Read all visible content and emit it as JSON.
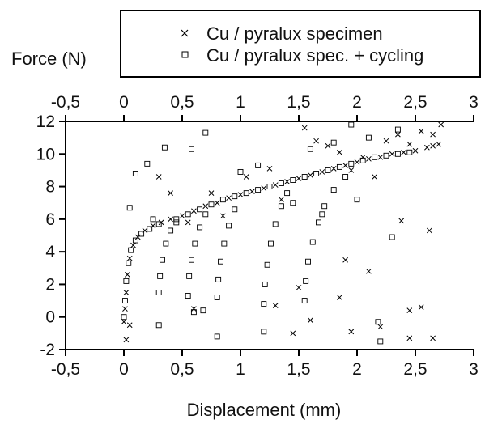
{
  "chart_data": {
    "type": "scatter",
    "title": "",
    "xlabel": "Displacement (mm)",
    "ylabel": "Force (N)",
    "xlim": [
      -0.5,
      3
    ],
    "ylim": [
      -2,
      12
    ],
    "x_ticks": [
      "-0,5",
      "0",
      "0,5",
      "1",
      "1,5",
      "2",
      "2,5",
      "3"
    ],
    "x_tick_values": [
      -0.5,
      0,
      0.5,
      1,
      1.5,
      2,
      2.5,
      3
    ],
    "y_ticks": [
      "-2",
      "0",
      "2",
      "4",
      "6",
      "8",
      "10",
      "12"
    ],
    "y_tick_values": [
      -2,
      0,
      2,
      4,
      6,
      8,
      10,
      12
    ],
    "top_axis": true,
    "grid": false,
    "legend_position": "top-right",
    "series": [
      {
        "name": "Cu / pyralux specimen",
        "marker": "x",
        "points": [
          [
            0.0,
            -0.3
          ],
          [
            0.01,
            0.5
          ],
          [
            0.02,
            1.5
          ],
          [
            0.03,
            2.6
          ],
          [
            0.05,
            3.6
          ],
          [
            0.08,
            4.4
          ],
          [
            0.12,
            4.9
          ],
          [
            0.18,
            5.3
          ],
          [
            0.25,
            5.6
          ],
          [
            0.32,
            5.8
          ],
          [
            0.4,
            6.0
          ],
          [
            0.5,
            6.2
          ],
          [
            0.6,
            6.5
          ],
          [
            0.7,
            6.8
          ],
          [
            0.8,
            7.0
          ],
          [
            0.9,
            7.3
          ],
          [
            1.0,
            7.5
          ],
          [
            1.1,
            7.7
          ],
          [
            1.2,
            7.9
          ],
          [
            1.3,
            8.1
          ],
          [
            1.4,
            8.3
          ],
          [
            1.5,
            8.5
          ],
          [
            1.6,
            8.7
          ],
          [
            1.7,
            8.9
          ],
          [
            1.8,
            9.1
          ],
          [
            1.9,
            9.3
          ],
          [
            2.0,
            9.5
          ],
          [
            2.1,
            9.7
          ],
          [
            2.2,
            9.8
          ],
          [
            2.3,
            10.0
          ],
          [
            2.4,
            10.1
          ],
          [
            2.5,
            10.2
          ],
          [
            2.6,
            10.4
          ],
          [
            2.65,
            10.5
          ],
          [
            2.7,
            10.6
          ],
          [
            0.55,
            5.8
          ],
          [
            0.75,
            7.6
          ],
          [
            0.85,
            6.2
          ],
          [
            1.05,
            8.6
          ],
          [
            1.25,
            9.1
          ],
          [
            1.35,
            7.2
          ],
          [
            1.55,
            11.6
          ],
          [
            1.65,
            10.8
          ],
          [
            1.75,
            10.5
          ],
          [
            1.85,
            10.1
          ],
          [
            1.95,
            9.0
          ],
          [
            2.05,
            9.8
          ],
          [
            2.15,
            8.6
          ],
          [
            2.25,
            10.8
          ],
          [
            2.35,
            11.2
          ],
          [
            2.45,
            10.6
          ],
          [
            2.55,
            11.4
          ],
          [
            2.65,
            11.2
          ],
          [
            2.72,
            11.8
          ],
          [
            1.85,
            1.2
          ],
          [
            1.9,
            3.5
          ],
          [
            2.1,
            2.8
          ],
          [
            2.2,
            -0.6
          ],
          [
            2.38,
            5.9
          ],
          [
            2.45,
            0.4
          ],
          [
            2.45,
            -1.3
          ],
          [
            2.55,
            0.6
          ],
          [
            2.62,
            5.3
          ],
          [
            2.65,
            -1.3
          ],
          [
            1.45,
            -1.0
          ],
          [
            1.6,
            -0.2
          ],
          [
            1.95,
            -0.9
          ],
          [
            1.3,
            0.7
          ],
          [
            1.5,
            1.8
          ],
          [
            0.02,
            -1.4
          ],
          [
            0.05,
            -0.5
          ],
          [
            0.6,
            0.5
          ],
          [
            0.4,
            7.6
          ],
          [
            0.3,
            8.6
          ]
        ]
      },
      {
        "name": "Cu / pyralux spec. + cycling",
        "marker": "square",
        "points": [
          [
            0.0,
            0.0
          ],
          [
            0.01,
            1.0
          ],
          [
            0.02,
            2.2
          ],
          [
            0.04,
            3.3
          ],
          [
            0.06,
            4.1
          ],
          [
            0.1,
            4.7
          ],
          [
            0.15,
            5.1
          ],
          [
            0.22,
            5.4
          ],
          [
            0.3,
            5.7
          ],
          [
            0.45,
            6.0
          ],
          [
            0.55,
            6.3
          ],
          [
            0.65,
            6.6
          ],
          [
            0.75,
            6.9
          ],
          [
            0.85,
            7.2
          ],
          [
            0.95,
            7.4
          ],
          [
            1.05,
            7.6
          ],
          [
            1.15,
            7.8
          ],
          [
            1.25,
            8.0
          ],
          [
            1.35,
            8.2
          ],
          [
            1.45,
            8.4
          ],
          [
            1.55,
            8.6
          ],
          [
            1.65,
            8.8
          ],
          [
            1.75,
            9.0
          ],
          [
            1.85,
            9.2
          ],
          [
            1.95,
            9.4
          ],
          [
            2.05,
            9.6
          ],
          [
            2.15,
            9.8
          ],
          [
            2.25,
            9.9
          ],
          [
            2.35,
            10.0
          ],
          [
            2.45,
            10.1
          ],
          [
            0.3,
            -0.5
          ],
          [
            0.3,
            1.5
          ],
          [
            0.31,
            2.5
          ],
          [
            0.33,
            3.5
          ],
          [
            0.36,
            4.5
          ],
          [
            0.4,
            5.3
          ],
          [
            0.45,
            5.8
          ],
          [
            0.55,
            1.3
          ],
          [
            0.56,
            2.5
          ],
          [
            0.58,
            3.5
          ],
          [
            0.61,
            4.5
          ],
          [
            0.65,
            5.5
          ],
          [
            0.7,
            6.3
          ],
          [
            0.8,
            1.2
          ],
          [
            0.81,
            2.3
          ],
          [
            0.83,
            3.4
          ],
          [
            0.86,
            4.5
          ],
          [
            0.9,
            5.6
          ],
          [
            0.95,
            6.6
          ],
          [
            1.2,
            0.8
          ],
          [
            1.21,
            2.0
          ],
          [
            1.23,
            3.2
          ],
          [
            1.26,
            4.5
          ],
          [
            1.3,
            5.7
          ],
          [
            1.35,
            6.8
          ],
          [
            1.4,
            7.6
          ],
          [
            1.55,
            1.0
          ],
          [
            1.56,
            2.2
          ],
          [
            1.58,
            3.4
          ],
          [
            1.62,
            4.6
          ],
          [
            1.67,
            5.8
          ],
          [
            1.72,
            6.8
          ],
          [
            1.8,
            7.8
          ],
          [
            0.35,
            10.4
          ],
          [
            0.58,
            10.3
          ],
          [
            0.7,
            11.3
          ],
          [
            0.1,
            8.8
          ],
          [
            0.2,
            9.4
          ],
          [
            0.05,
            6.7
          ],
          [
            0.25,
            6.0
          ],
          [
            1.95,
            11.8
          ],
          [
            2.1,
            11.0
          ],
          [
            2.35,
            11.5
          ],
          [
            2.18,
            -0.3
          ],
          [
            2.2,
            -1.5
          ],
          [
            2.3,
            4.9
          ],
          [
            1.2,
            -0.9
          ],
          [
            0.8,
            -1.2
          ],
          [
            0.6,
            0.3
          ],
          [
            0.68,
            0.4
          ],
          [
            1.9,
            8.6
          ],
          [
            2.0,
            7.2
          ],
          [
            1.7,
            6.3
          ],
          [
            1.45,
            7.0
          ],
          [
            1.0,
            8.9
          ],
          [
            1.15,
            9.3
          ],
          [
            1.6,
            10.3
          ],
          [
            1.8,
            10.7
          ]
        ]
      }
    ]
  }
}
